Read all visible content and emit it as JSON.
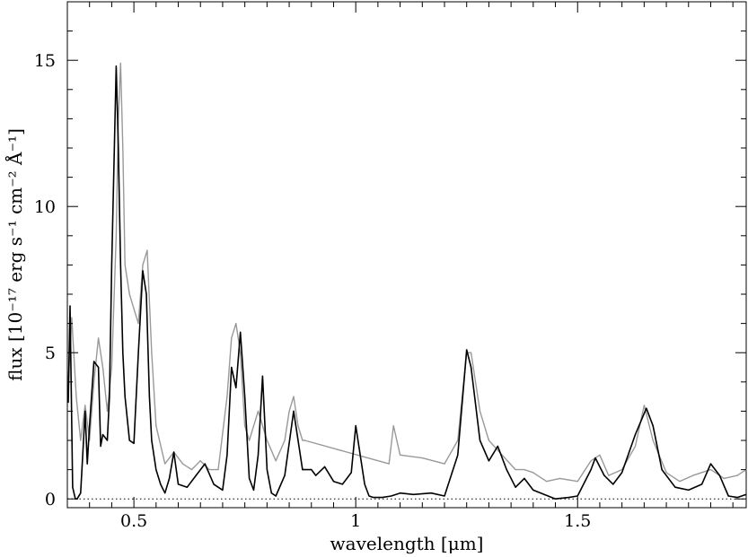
{
  "chart_data": {
    "type": "line",
    "title": "",
    "xlabel": "wavelength [μm]",
    "ylabel": "flux [10⁻¹⁷ erg s⁻¹ cm⁻² Å⁻¹]",
    "xlim": [
      0.35,
      1.88
    ],
    "ylim": [
      -0.3,
      17.0
    ],
    "x_ticks": [
      0.5,
      1.0,
      1.5
    ],
    "x_tick_labels": [
      "0.5",
      "1",
      "1.5"
    ],
    "y_ticks": [
      0,
      5,
      10,
      15
    ],
    "y_tick_labels": [
      "0",
      "5",
      "10",
      "15"
    ],
    "grid": false,
    "legend": "none",
    "zero_line": {
      "y": 0,
      "style": "dotted"
    },
    "series": [
      {
        "style": "observed",
        "color": "#999999",
        "x": [
          0.352,
          0.36,
          0.37,
          0.38,
          0.39,
          0.4,
          0.41,
          0.42,
          0.43,
          0.44,
          0.45,
          0.46,
          0.465,
          0.47,
          0.475,
          0.48,
          0.49,
          0.5,
          0.51,
          0.52,
          0.53,
          0.54,
          0.55,
          0.57,
          0.59,
          0.61,
          0.63,
          0.65,
          0.67,
          0.69,
          0.71,
          0.72,
          0.73,
          0.74,
          0.75,
          0.76,
          0.78,
          0.8,
          0.82,
          0.84,
          0.85,
          0.86,
          0.87,
          0.88,
          0.885,
          1.075,
          1.085,
          1.1,
          1.15,
          1.2,
          1.23,
          1.25,
          1.26,
          1.28,
          1.3,
          1.33,
          1.36,
          1.38,
          1.4,
          1.43,
          1.46,
          1.5,
          1.53,
          1.55,
          1.57,
          1.6,
          1.63,
          1.65,
          1.67,
          1.7,
          1.73,
          1.76,
          1.8,
          1.83,
          1.86,
          1.88
        ],
        "y": [
          4.0,
          6.2,
          3.5,
          2.0,
          3.2,
          2.0,
          4.0,
          5.5,
          4.5,
          3.0,
          4.5,
          9.0,
          13.0,
          14.9,
          12.0,
          8.0,
          7.0,
          6.5,
          6.0,
          8.0,
          8.5,
          5.0,
          2.5,
          1.2,
          1.6,
          1.2,
          1.0,
          1.3,
          1.0,
          1.0,
          3.5,
          5.5,
          6.0,
          5.0,
          2.5,
          2.0,
          3.0,
          2.0,
          1.3,
          2.0,
          3.0,
          3.5,
          2.5,
          2.0,
          2.0,
          1.2,
          2.5,
          1.5,
          1.4,
          1.2,
          2.0,
          5.0,
          5.0,
          3.0,
          2.0,
          1.5,
          1.0,
          1.0,
          0.9,
          0.6,
          0.7,
          0.6,
          1.3,
          1.5,
          0.8,
          1.0,
          1.8,
          3.2,
          2.0,
          0.9,
          0.6,
          0.8,
          1.0,
          0.7,
          0.8,
          1.0
        ]
      },
      {
        "style": "model",
        "color": "#000000",
        "x": [
          0.352,
          0.356,
          0.362,
          0.368,
          0.372,
          0.38,
          0.39,
          0.395,
          0.4,
          0.41,
          0.42,
          0.425,
          0.43,
          0.44,
          0.445,
          0.45,
          0.46,
          0.465,
          0.47,
          0.475,
          0.48,
          0.49,
          0.5,
          0.51,
          0.52,
          0.528,
          0.535,
          0.54,
          0.55,
          0.56,
          0.57,
          0.58,
          0.59,
          0.6,
          0.62,
          0.64,
          0.66,
          0.68,
          0.7,
          0.71,
          0.72,
          0.73,
          0.74,
          0.75,
          0.76,
          0.77,
          0.78,
          0.79,
          0.8,
          0.81,
          0.82,
          0.84,
          0.86,
          0.88,
          0.9,
          0.91,
          0.93,
          0.95,
          0.97,
          0.99,
          1.0,
          1.02,
          1.03,
          1.04,
          1.06,
          1.08,
          1.1,
          1.13,
          1.17,
          1.2,
          1.23,
          1.25,
          1.26,
          1.28,
          1.3,
          1.32,
          1.34,
          1.36,
          1.38,
          1.4,
          1.45,
          1.48,
          1.5,
          1.53,
          1.54,
          1.56,
          1.58,
          1.6,
          1.63,
          1.655,
          1.67,
          1.69,
          1.72,
          1.75,
          1.78,
          1.8,
          1.82,
          1.84,
          1.86,
          1.88
        ],
        "y": [
          3.3,
          6.6,
          0.4,
          0.0,
          0.0,
          0.2,
          3.0,
          1.2,
          2.5,
          4.7,
          4.5,
          1.8,
          2.2,
          2.0,
          3.5,
          8.0,
          14.8,
          12.0,
          8.0,
          5.0,
          3.5,
          2.0,
          1.9,
          5.0,
          7.8,
          7.0,
          3.5,
          2.0,
          1.0,
          0.5,
          0.2,
          0.7,
          1.6,
          0.5,
          0.4,
          0.8,
          1.2,
          0.5,
          0.3,
          1.5,
          4.5,
          3.8,
          5.7,
          3.5,
          0.7,
          0.3,
          1.5,
          4.2,
          1.0,
          0.2,
          0.1,
          0.8,
          3.0,
          1.0,
          1.0,
          0.8,
          1.1,
          0.6,
          0.5,
          0.9,
          2.5,
          0.5,
          0.1,
          0.05,
          0.05,
          0.1,
          0.2,
          0.15,
          0.2,
          0.1,
          1.5,
          5.1,
          4.5,
          2.0,
          1.3,
          1.8,
          1.0,
          0.4,
          0.7,
          0.3,
          0.0,
          0.05,
          0.1,
          1.0,
          1.4,
          0.8,
          0.5,
          0.9,
          2.2,
          3.1,
          2.5,
          1.0,
          0.4,
          0.3,
          0.5,
          1.2,
          0.8,
          0.1,
          0.05,
          0.15
        ]
      }
    ]
  }
}
